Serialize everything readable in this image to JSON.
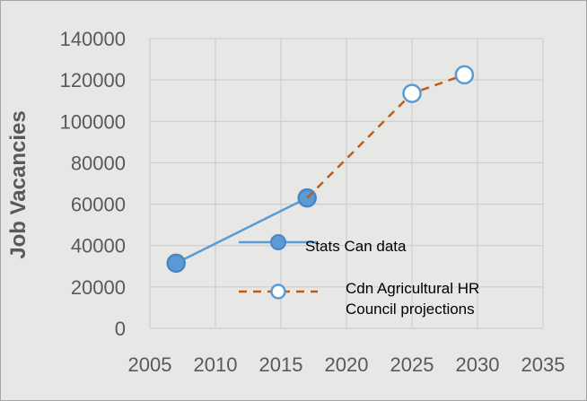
{
  "chart_data": {
    "type": "scatter",
    "title": "",
    "xlabel": "",
    "ylabel": "Job Vacancies",
    "xlim": [
      2005,
      2035
    ],
    "ylim": [
      0,
      140000
    ],
    "x_ticks": [
      2005,
      2010,
      2015,
      2020,
      2025,
      2030,
      2035
    ],
    "y_ticks": [
      0,
      20000,
      40000,
      60000,
      80000,
      100000,
      120000,
      140000
    ],
    "grid": true,
    "legend_placement": "inside-lower-right",
    "series": [
      {
        "name": "Stats Can data",
        "line_style": "solid",
        "marker": "filled-circle",
        "color": "#5b9bd5",
        "points": [
          {
            "x": 2007,
            "y": 31500
          },
          {
            "x": 2017,
            "y": 63000
          }
        ]
      },
      {
        "name": "Cdn Agricultural  HR Council projections",
        "name_lines": [
          "Cdn Agricultural  HR",
          "Council projections"
        ],
        "line_style": "dashed",
        "marker": "hollow-circle",
        "color": "#c55a11",
        "marker_color": "#5b9bd5",
        "points": [
          {
            "x": 2017,
            "y": 63000
          },
          {
            "x": 2025,
            "y": 113500
          },
          {
            "x": 2029,
            "y": 122500
          }
        ]
      }
    ]
  }
}
